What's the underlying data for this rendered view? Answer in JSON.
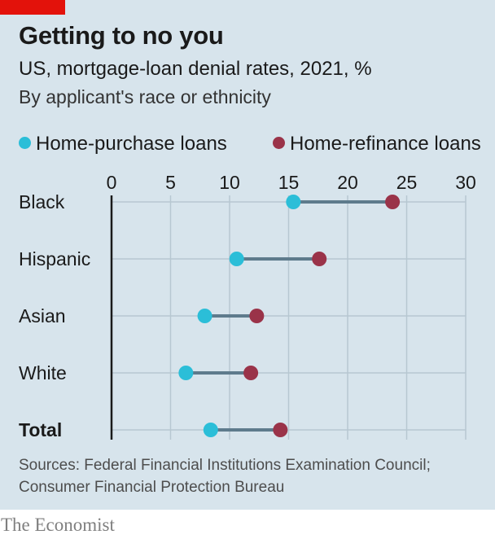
{
  "brand": "The Economist",
  "colors": {
    "purchase": "#2bbed8",
    "refinance": "#9a3349",
    "accent": "#e3120b",
    "connector": "#5e7b8c"
  },
  "chart_data": {
    "type": "dumbbell",
    "title": "Getting to no you",
    "subtitle": "US, mortgage-loan denial rates, 2021, %",
    "subtitle2": "By applicant's race or ethnicity",
    "categories": [
      "Black",
      "Hispanic",
      "Asian",
      "White",
      "Total"
    ],
    "series": [
      {
        "name": "Home-purchase loans",
        "values": [
          15.4,
          10.6,
          7.9,
          6.3,
          8.4
        ]
      },
      {
        "name": "Home-refinance loans",
        "values": [
          23.8,
          17.6,
          12.3,
          11.8,
          14.3
        ]
      }
    ],
    "xlim": [
      0,
      30
    ],
    "xticks": [
      0,
      5,
      10,
      15,
      20,
      25,
      30
    ],
    "grid": true,
    "legend_position": "top",
    "source": "Sources: Federal Financial Institutions Examination Council; Consumer Financial Protection Bureau"
  }
}
